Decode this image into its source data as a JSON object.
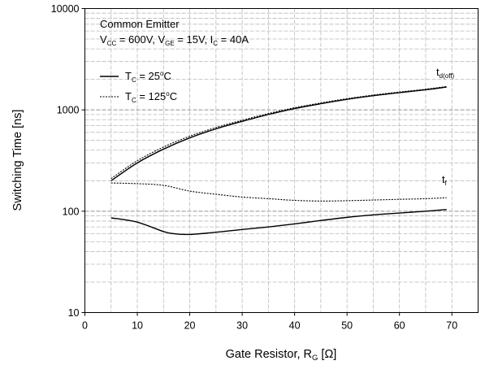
{
  "chart_data": {
    "type": "line",
    "xlabel": "Gate Resistor, R",
    "xlabel_sub": "G",
    "xlabel_unit": " [Ω]",
    "ylabel": "Switching Time [ns]",
    "xlim": [
      0,
      75
    ],
    "ylim": [
      10,
      10000
    ],
    "yscale": "log",
    "x_ticks": [
      "0",
      "10",
      "20",
      "30",
      "40",
      "50",
      "60",
      "70"
    ],
    "y_ticks": [
      "10",
      "100",
      "1000",
      "10000"
    ],
    "grid": true,
    "annotation": {
      "line1": "Common Emitter",
      "line2_parts": [
        {
          "t": "V",
          "sub": false
        },
        {
          "t": "CC",
          "sub": true
        },
        {
          "t": " = 600V, V",
          "sub": false
        },
        {
          "t": "GE",
          "sub": true
        },
        {
          "t": " = 15V, I",
          "sub": false
        },
        {
          "t": "C",
          "sub": true
        },
        {
          "t": " = 40A",
          "sub": false
        }
      ]
    },
    "legend": {
      "placement": "top-left",
      "entries": [
        {
          "style": "solid",
          "prefix": "T",
          "sub": "C",
          "value": " = 25",
          "sup": "o",
          "unit": "C"
        },
        {
          "style": "dotted",
          "prefix": "T",
          "sub": "C",
          "value": " = 125",
          "sup": "o",
          "unit": "C"
        }
      ]
    },
    "series": [
      {
        "style": "solid",
        "x": [
          5,
          10,
          15,
          20,
          25,
          30,
          35,
          40,
          45,
          50,
          55,
          60,
          65,
          69
        ],
        "values": [
          200,
          300,
          410,
          530,
          650,
          770,
          900,
          1030,
          1150,
          1270,
          1380,
          1480,
          1580,
          1680
        ]
      },
      {
        "style": "dotted",
        "x": [
          5,
          10,
          15,
          20,
          25,
          30,
          35,
          40,
          45,
          50,
          55,
          60,
          65,
          69
        ],
        "values": [
          210,
          315,
          430,
          550,
          670,
          790,
          920,
          1050,
          1170,
          1290,
          1400,
          1500,
          1600,
          1700
        ]
      },
      {
        "style": "dotted",
        "x": [
          5,
          10,
          15,
          20,
          25,
          30,
          35,
          40,
          45,
          50,
          55,
          60,
          65,
          69
        ],
        "values": [
          190,
          187,
          180,
          158,
          147,
          138,
          133,
          128,
          126,
          127,
          129,
          131,
          133,
          136
        ]
      },
      {
        "style": "solid",
        "x": [
          5,
          10,
          15,
          17,
          20,
          25,
          30,
          35,
          40,
          45,
          50,
          55,
          60,
          65,
          69
        ],
        "values": [
          86,
          78,
          63,
          60,
          59,
          62,
          66,
          70,
          75,
          81,
          87,
          92,
          96,
          100,
          104
        ]
      }
    ],
    "curve_labels": [
      {
        "base": "t",
        "sub": "d(off)"
      },
      {
        "base": "t",
        "sub": "f"
      }
    ]
  }
}
